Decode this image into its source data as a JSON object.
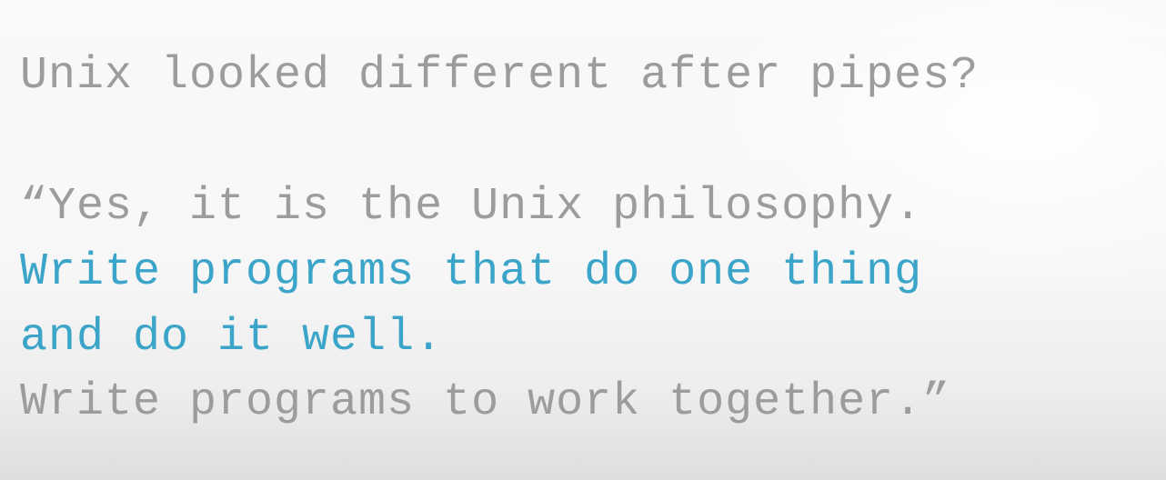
{
  "slide": {
    "question": "Unix looked different after pipes?",
    "quote_line_1": "“Yes, it is the Unix philosophy.",
    "quote_line_2": "Write programs that do one thing",
    "quote_line_3": "and do it well.",
    "quote_line_4": "Write programs to work together.”"
  },
  "colors": {
    "text_gray": "#9c9c9c",
    "text_blue": "#3aa4c9",
    "background": "#f8f8f8"
  }
}
